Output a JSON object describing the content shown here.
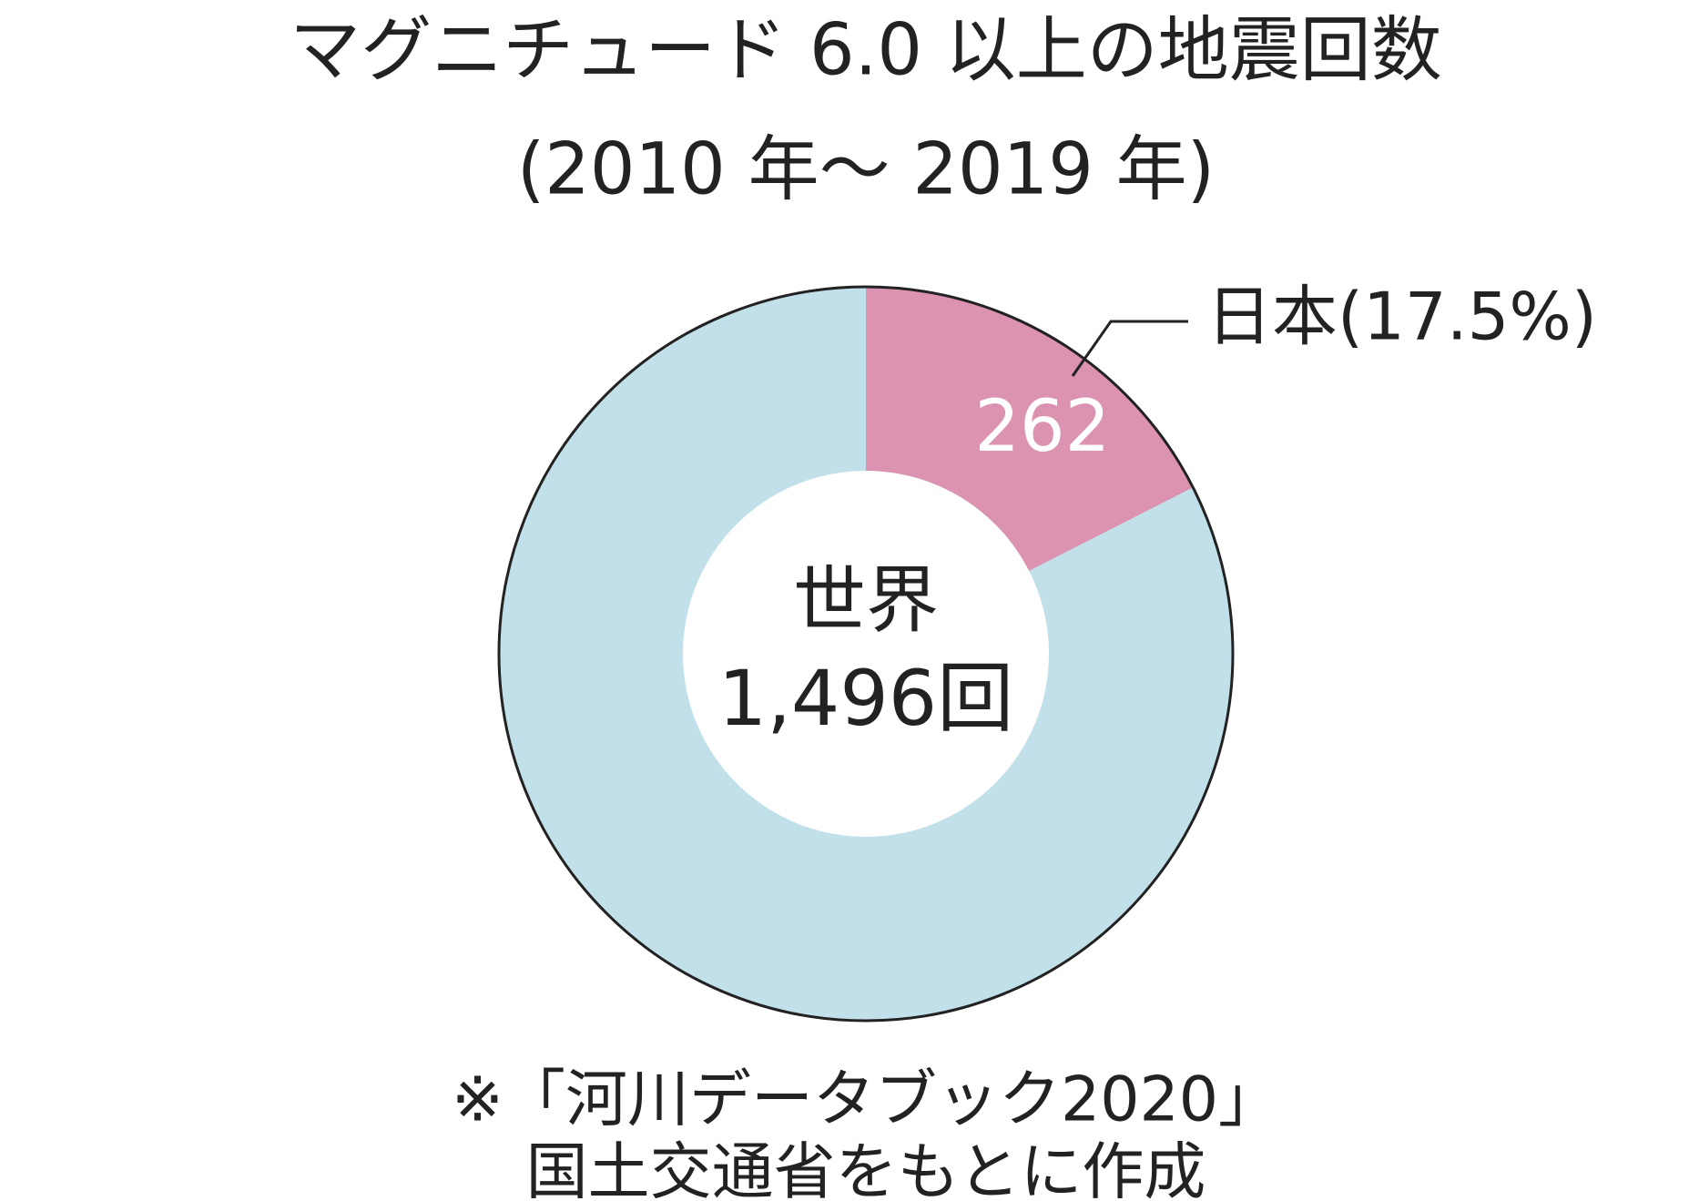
{
  "chart_data": {
    "type": "donut",
    "title": [
      "マグニチュード 6.0 以上の地震回数",
      "(2010 年～ 2019 年)"
    ],
    "center_label": "世界",
    "total": 1496,
    "total_label": "1,496回",
    "total_color": "#c1e0ea",
    "slices": [
      {
        "name": "日本(17.5%)",
        "value": 262,
        "color": "#dc93b1"
      }
    ],
    "footnote": [
      "※「河川データブック2020」",
      "国土交通省をもとに作成"
    ]
  }
}
